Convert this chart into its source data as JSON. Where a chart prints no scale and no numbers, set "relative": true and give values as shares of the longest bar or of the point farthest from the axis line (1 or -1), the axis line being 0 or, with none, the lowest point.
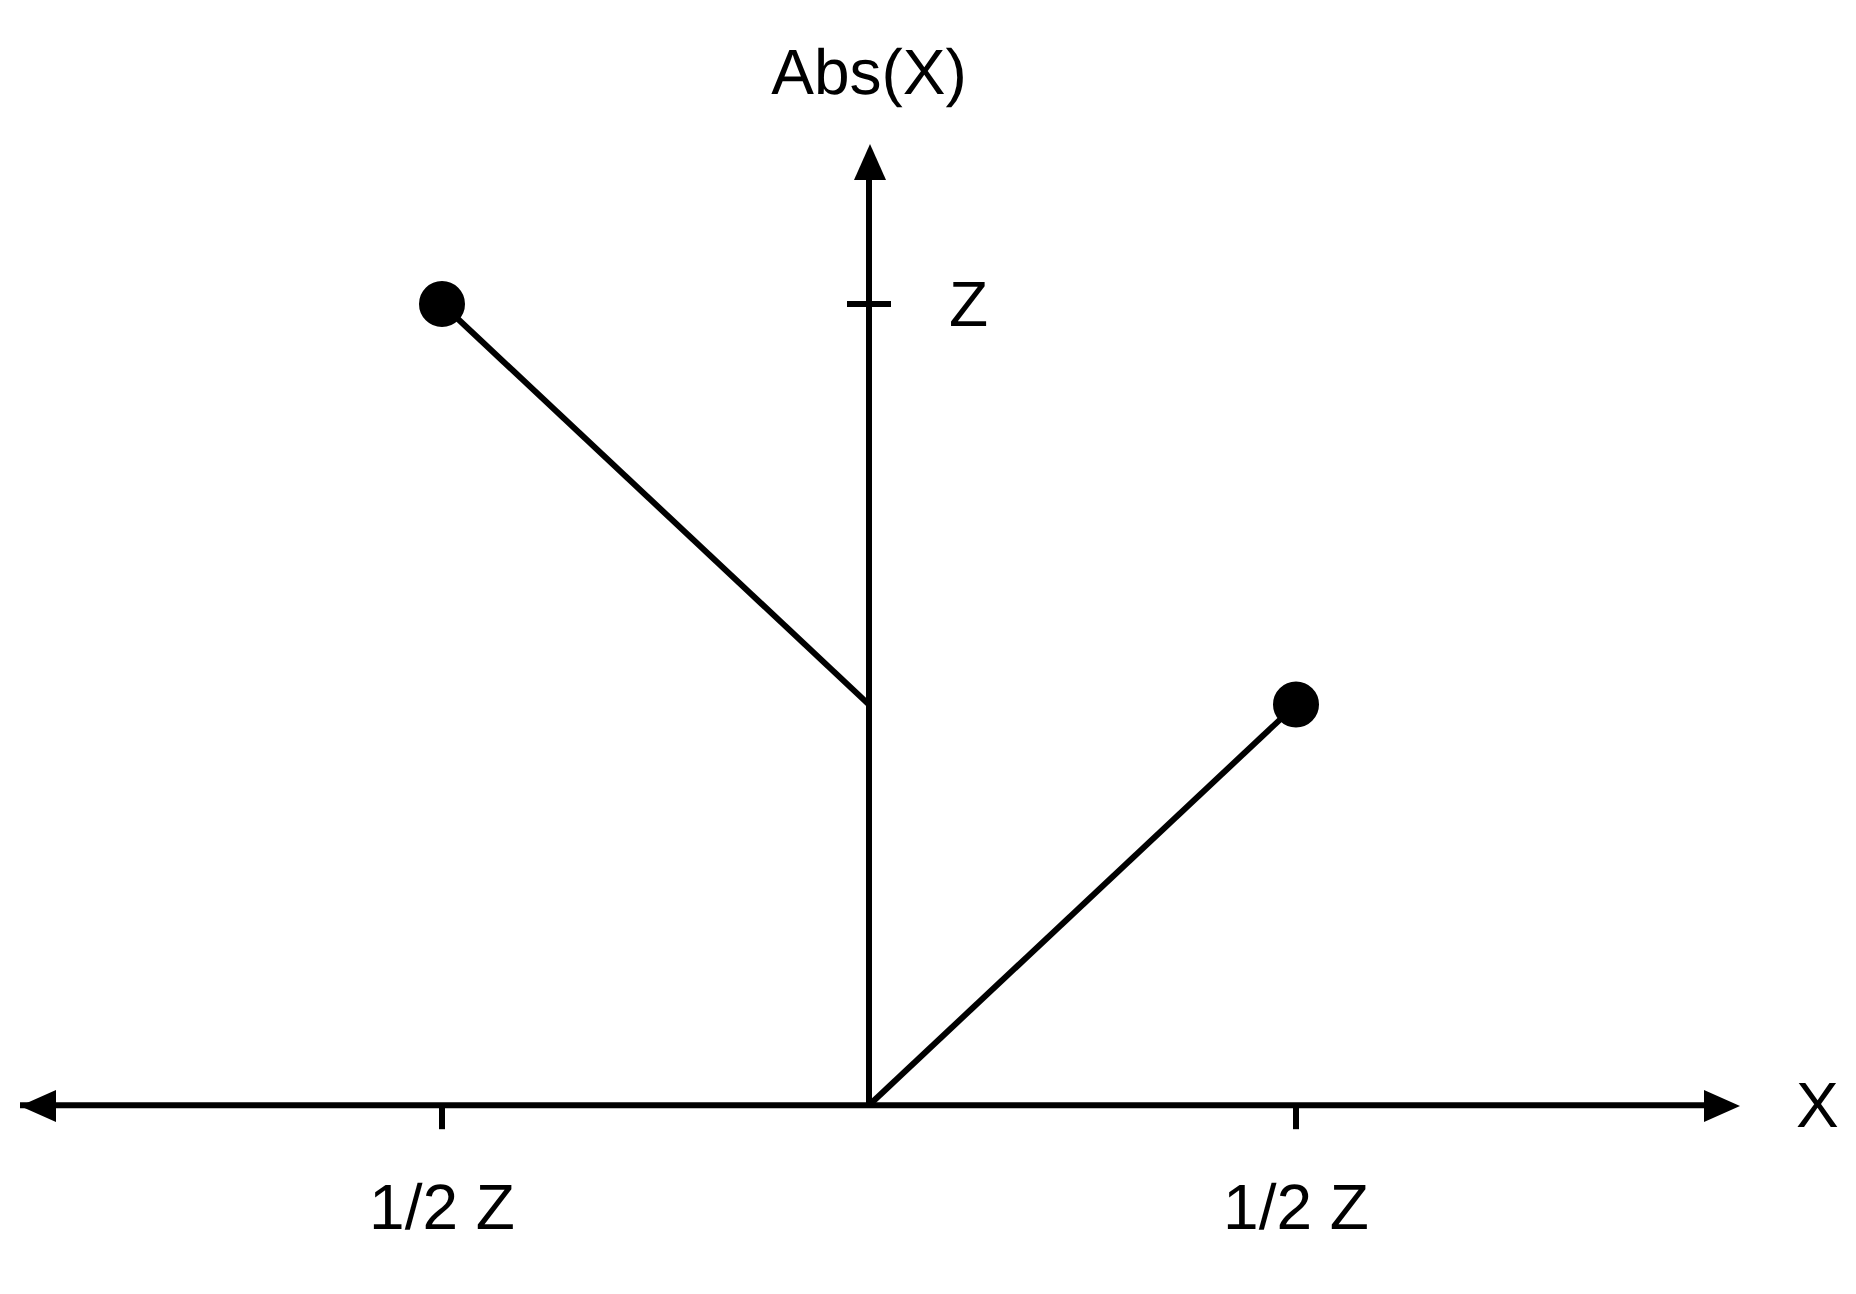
{
  "chart_data": {
    "type": "line",
    "xlabel": "X",
    "ylabel": "Abs(X)",
    "relative": true,
    "categories": [
      "1/2 Z",
      null,
      "1/2 Z"
    ],
    "annotations": [
      "Z"
    ],
    "legend": false,
    "series": [
      {
        "color": "#000000",
        "values": [
          1,
          0.5,
          null
        ],
        "marker": "none"
      },
      {
        "color": "#000000",
        "values": [
          null,
          0,
          0.5
        ],
        "marker": "none"
      },
      {
        "type": "scatter",
        "color": "#000000",
        "values": [
          1,
          null,
          0.5
        ],
        "marker": "circle"
      }
    ]
  }
}
